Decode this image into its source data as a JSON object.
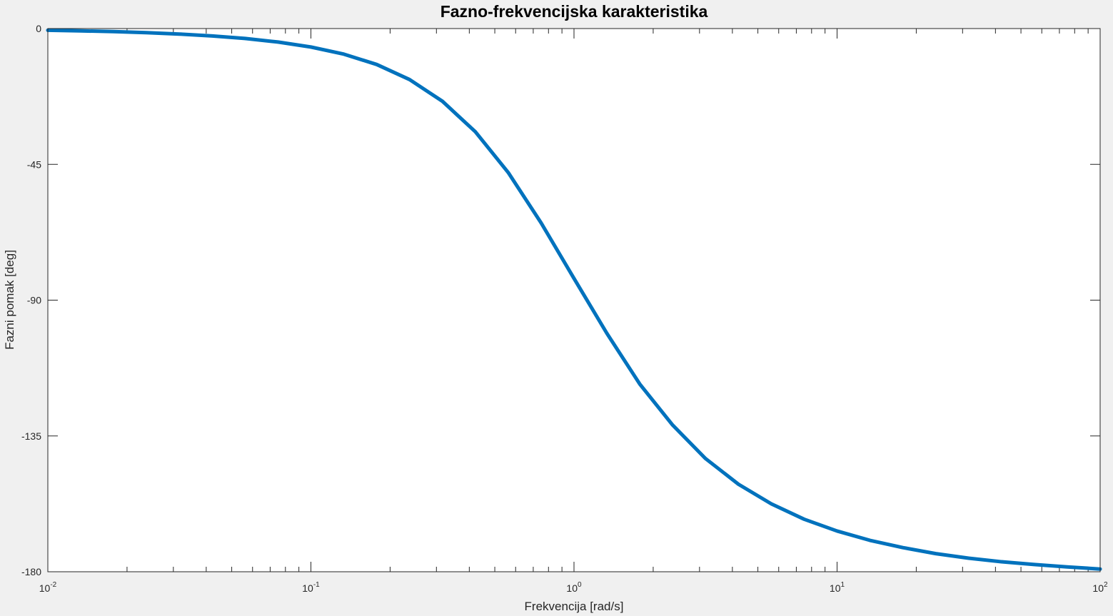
{
  "chart_data": {
    "type": "line",
    "title": "Fazno-frekvencijska karakteristika",
    "xlabel": "Frekvencija [rad/s]",
    "ylabel": "Fazni pomak [deg]",
    "xscale": "log",
    "xlim": [
      0.01,
      100
    ],
    "ylim": [
      -180,
      0
    ],
    "grid": false,
    "legend": "none",
    "x_ticks": [
      {
        "value": 0.01,
        "base": "10",
        "exp": "-2"
      },
      {
        "value": 0.1,
        "base": "10",
        "exp": "-1"
      },
      {
        "value": 1,
        "base": "10",
        "exp": "0"
      },
      {
        "value": 10,
        "base": "10",
        "exp": "1"
      },
      {
        "value": 100,
        "base": "10",
        "exp": "2"
      }
    ],
    "y_ticks": [
      {
        "value": 0,
        "label": "0"
      },
      {
        "value": -45,
        "label": "-45"
      },
      {
        "value": -90,
        "label": "-90"
      },
      {
        "value": -135,
        "label": "-135"
      },
      {
        "value": -180,
        "label": "-180"
      }
    ],
    "series": [
      {
        "color": "#0072bd",
        "x": [
          0.01,
          0.0133,
          0.0178,
          0.0237,
          0.0316,
          0.0422,
          0.0562,
          0.075,
          0.1,
          0.1334,
          0.1778,
          0.2371,
          0.3162,
          0.4217,
          0.5623,
          0.7499,
          1.0,
          1.3335,
          1.7783,
          2.3714,
          3.1623,
          4.217,
          5.6234,
          7.4989,
          10.0,
          13.335,
          17.783,
          23.714,
          31.623,
          42.17,
          56.234,
          74.989,
          100.0
        ],
        "y": [
          -0.57,
          -0.76,
          -1.02,
          -1.36,
          -1.82,
          -2.44,
          -3.29,
          -4.47,
          -6.12,
          -8.48,
          -11.9,
          -16.9,
          -24.1,
          -34.2,
          -47.7,
          -64.4,
          -82.8,
          -101.0,
          -117.8,
          -131.4,
          -142.5,
          -151.0,
          -157.5,
          -162.6,
          -166.5,
          -169.6,
          -172.0,
          -174.0,
          -175.5,
          -176.7,
          -177.6,
          -178.4,
          -179.1
        ]
      }
    ]
  }
}
